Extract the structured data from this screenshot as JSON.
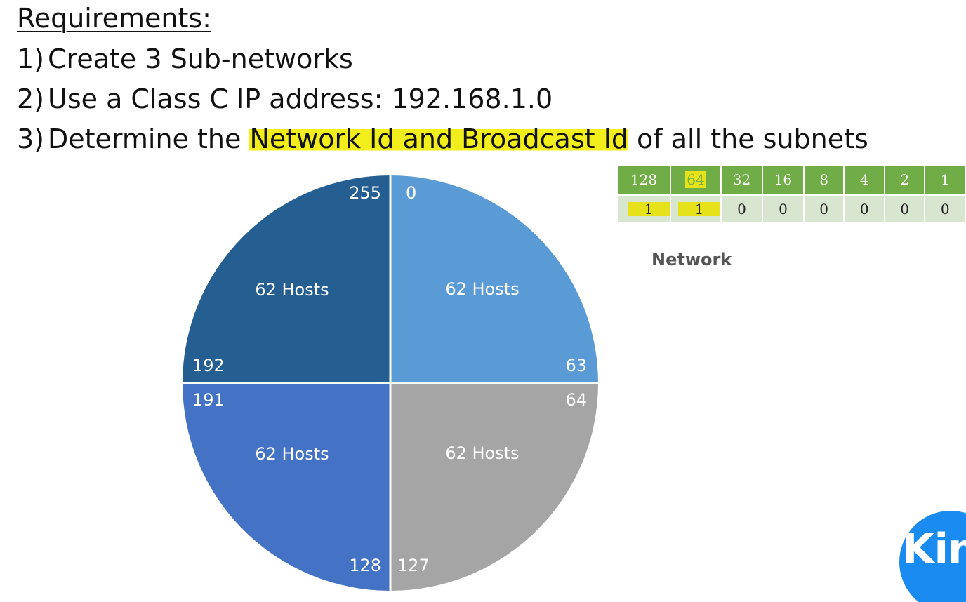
{
  "requirements": {
    "title": "Requirements:",
    "items": [
      {
        "num": "1)",
        "text": "Create 3 Sub-networks"
      },
      {
        "num": "2)",
        "text": "Use a Class C IP address: 192.168.1.0"
      },
      {
        "num": "3)",
        "pre": "Determine the ",
        "highlight": "Network Id and Broadcast Id",
        "post": " of all the subnets"
      }
    ]
  },
  "pie": {
    "quadrants": [
      {
        "hosts": "62 Hosts",
        "start": "0",
        "end": "63",
        "color": "#5b9bd5"
      },
      {
        "hosts": "62 Hosts",
        "start": "64",
        "end": "127",
        "color": "#a5a5a5"
      },
      {
        "hosts": "62 Hosts",
        "start": "128",
        "end": "191",
        "color": "#4472c4"
      },
      {
        "hosts": "62 Hosts",
        "start": "192",
        "end": "255",
        "color": "#255e91"
      }
    ]
  },
  "bit_table": {
    "weights": [
      "128",
      "64",
      "32",
      "16",
      "8",
      "4",
      "2",
      "1"
    ],
    "bits": [
      "1",
      "1",
      "0",
      "0",
      "0",
      "0",
      "0",
      "0"
    ],
    "highlight_color": "#e6e21a",
    "header_color": "#70ad47"
  },
  "network_label": "Network",
  "logo": {
    "text": "King",
    "color": "#1a8bf0"
  }
}
